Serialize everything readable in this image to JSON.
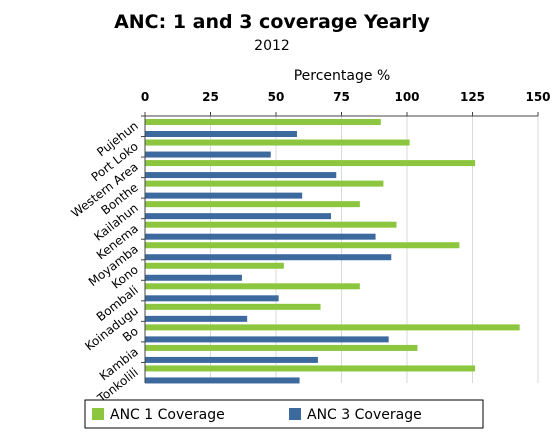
{
  "chart_data": {
    "type": "bar",
    "orientation": "horizontal",
    "title": "ANC: 1 and 3 coverage Yearly",
    "subtitle": "2012",
    "xlabel": "Percentage %",
    "ylabel": "",
    "xlim": [
      0,
      150
    ],
    "x_ticks": [
      "0",
      "25",
      "50",
      "75",
      "100",
      "125",
      "150"
    ],
    "x_axis_position": "top",
    "grid": true,
    "legend_position": "bottom",
    "categories": [
      "Pujehun",
      "Port Loko",
      "Western Area",
      "Bonthe",
      "Kailahun",
      "Kenema",
      "Moyamba",
      "Kono",
      "Bombali",
      "Koinadugu",
      "Bo",
      "Kambia",
      "Tonkolili"
    ],
    "series": [
      {
        "name": "ANC 1 Coverage",
        "color": "#8cc63f",
        "values": [
          90,
          101,
          126,
          91,
          82,
          96,
          120,
          53,
          82,
          67,
          143,
          104,
          126
        ]
      },
      {
        "name": "ANC 3 Coverage",
        "color": "#3d6a9e",
        "values": [
          58,
          48,
          73,
          60,
          71,
          88,
          94,
          37,
          51,
          39,
          93,
          66,
          59
        ]
      }
    ]
  }
}
